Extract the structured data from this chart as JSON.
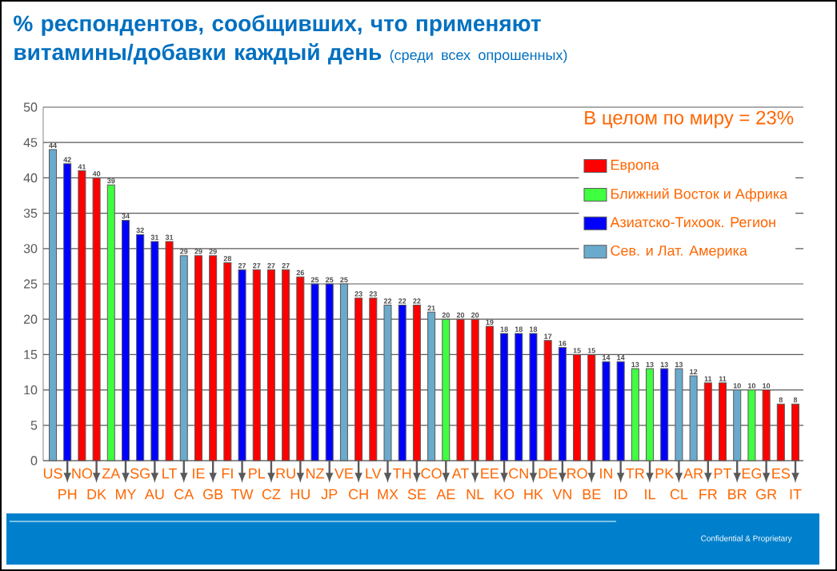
{
  "chart_data": {
    "type": "bar",
    "title": "% респондентов, сообщивших, что применяют витамины/добавки  каждый день",
    "subtitle": "(среди всех опрошенных)",
    "categories": [
      "US",
      "PH",
      "NO",
      "DK",
      "ZA",
      "MY",
      "SG",
      "AU",
      "LT",
      "CA",
      "IE",
      "GB",
      "FI",
      "TW",
      "PL",
      "CZ",
      "RU",
      "HU",
      "NZ",
      "JP",
      "VE",
      "CH",
      "LV",
      "MX",
      "TH",
      "SE",
      "CO",
      "AE",
      "AT",
      "NL",
      "EE",
      "KO",
      "CN",
      "HK",
      "DE",
      "VN",
      "RO",
      "BE",
      "IN",
      "ID",
      "TR",
      "IL",
      "PK",
      "CL",
      "AR",
      "FR",
      "PT",
      "BR",
      "EG",
      "GR",
      "ES",
      "IT"
    ],
    "series": [
      {
        "name": "Европа",
        "color": "#ff0000",
        "values": [
          null,
          null,
          41,
          40,
          null,
          null,
          null,
          null,
          31,
          null,
          29,
          29,
          28,
          null,
          27,
          27,
          27,
          26,
          null,
          null,
          null,
          23,
          23,
          null,
          null,
          22,
          null,
          null,
          20,
          20,
          19,
          null,
          null,
          null,
          17,
          null,
          15,
          15,
          null,
          null,
          null,
          null,
          null,
          null,
          null,
          11,
          11,
          null,
          null,
          10,
          8,
          8
        ]
      },
      {
        "name": "Ближний Восток и Африка",
        "color": "#40ff40",
        "values": [
          null,
          null,
          null,
          null,
          39,
          null,
          null,
          null,
          null,
          null,
          null,
          null,
          null,
          null,
          null,
          null,
          null,
          null,
          null,
          null,
          null,
          null,
          null,
          null,
          null,
          null,
          null,
          20,
          null,
          null,
          null,
          null,
          null,
          null,
          null,
          null,
          null,
          null,
          null,
          null,
          13,
          13,
          null,
          null,
          null,
          null,
          null,
          null,
          10,
          null,
          null,
          null
        ]
      },
      {
        "name": "Азиатско-Тихоок. Регион",
        "color": "#0000ff",
        "values": [
          null,
          42,
          null,
          null,
          null,
          34,
          32,
          31,
          null,
          null,
          null,
          null,
          null,
          27,
          null,
          null,
          null,
          null,
          25,
          25,
          null,
          null,
          null,
          null,
          22,
          null,
          null,
          null,
          null,
          null,
          null,
          18,
          18,
          18,
          null,
          16,
          null,
          null,
          14,
          14,
          null,
          null,
          13,
          null,
          null,
          null,
          null,
          null,
          null,
          null,
          null,
          null
        ]
      },
      {
        "name": "Сев. и Лат. Америка",
        "color": "#6aaacc",
        "values": [
          44,
          null,
          null,
          null,
          null,
          null,
          null,
          null,
          null,
          29,
          null,
          null,
          null,
          null,
          null,
          null,
          null,
          null,
          null,
          null,
          25,
          null,
          null,
          22,
          null,
          null,
          21,
          null,
          null,
          null,
          null,
          null,
          null,
          null,
          null,
          null,
          null,
          null,
          null,
          null,
          null,
          null,
          null,
          13,
          12,
          null,
          null,
          10,
          null,
          null,
          null,
          null
        ]
      }
    ],
    "ylim": [
      0,
      50
    ],
    "yticks": [
      0,
      5,
      10,
      15,
      20,
      25,
      30,
      35,
      40,
      45,
      50
    ],
    "grid": "y",
    "data_labels": true,
    "legend": "top right",
    "legend_title": "В целом по миру = 23%",
    "annotations": [
      "Confidential & Proprietary"
    ]
  }
}
